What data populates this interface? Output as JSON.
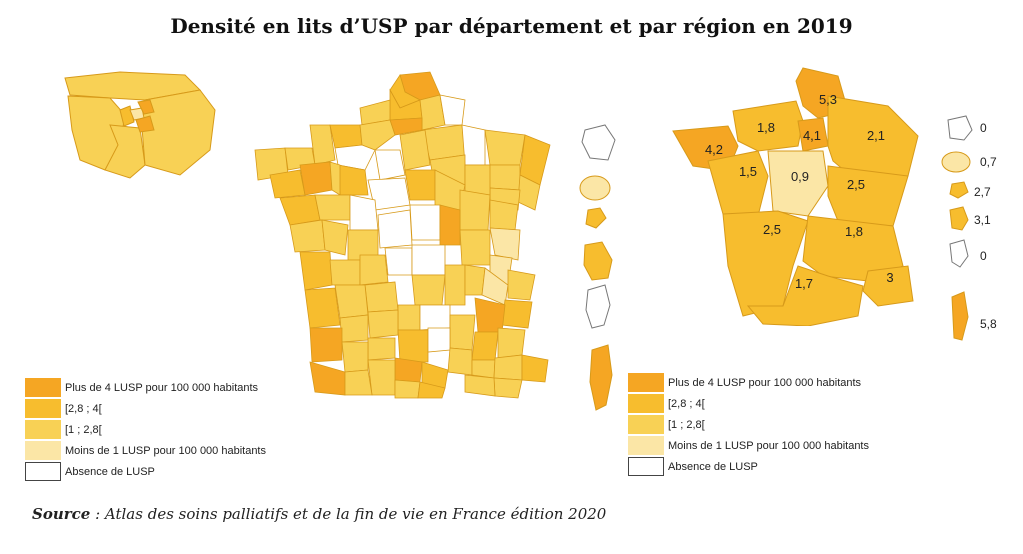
{
  "title": "Densité en lits d’USP par département et par région en 2019",
  "colors": {
    "c4": "#f5a623",
    "c28": "#f7bd2e",
    "c1": "#f8d155",
    "c0": "#fbe6a6",
    "none": "#ffffff",
    "stroke": "#d79a1a"
  },
  "legend_left": [
    {
      "label": "Plus de 4 LUSP pour 100 000 habitants",
      "color": "#f5a623"
    },
    {
      "label": "[2,8 ; 4[",
      "color": "#f7bd2e"
    },
    {
      "label": "[1 ; 2,8[",
      "color": "#f8d155"
    },
    {
      "label": "Moins de 1 LUSP pour 100 000 habitants",
      "color": "#fbe6a6"
    },
    {
      "label": "Absence de LUSP",
      "color": "#ffffff"
    }
  ],
  "legend_right": [
    {
      "label": "Plus de 4 LUSP pour 100 000 habitants",
      "color": "#f5a623"
    },
    {
      "label": "[2,8 ; 4[",
      "color": "#f7bd2e"
    },
    {
      "label": "[1 ; 2,8[",
      "color": "#f8d155"
    },
    {
      "label": "Moins de 1 LUSP pour 100 000 habitants",
      "color": "#fbe6a6"
    },
    {
      "label": "Absence de LUSP",
      "color": "#ffffff"
    }
  ],
  "regions": [
    {
      "name": "Hauts-de-France",
      "value": "5,3"
    },
    {
      "name": "Normandie",
      "value": "1,8"
    },
    {
      "name": "Île-de-France",
      "value": "4,1"
    },
    {
      "name": "Grand Est",
      "value": "2,1"
    },
    {
      "name": "Bretagne",
      "value": "4,2"
    },
    {
      "name": "Pays de la Loire",
      "value": "1,5"
    },
    {
      "name": "Centre-Val de Loire",
      "value": "0,9"
    },
    {
      "name": "Bourgogne-Franche-Comté",
      "value": "2,5"
    },
    {
      "name": "Nouvelle-Aquitaine",
      "value": "2,5"
    },
    {
      "name": "Auvergne-Rhône-Alpes",
      "value": "1,8"
    },
    {
      "name": "Occitanie",
      "value": "1,7"
    },
    {
      "name": "Provence-Alpes-Côte d'Azur",
      "value": "3"
    }
  ],
  "overseas": [
    {
      "name": "Guadeloupe",
      "value": "0"
    },
    {
      "name": "Martinique",
      "value": "0,7"
    },
    {
      "name": "Guyane",
      "value": "2,7"
    },
    {
      "name": "La Réunion",
      "value": "3,1"
    },
    {
      "name": "Mayotte",
      "value": "0"
    },
    {
      "name": "Corse",
      "value": "5,8"
    }
  ],
  "source": {
    "bold": "Source",
    "text": " : Atlas des soins palliatifs et de la fin de vie en France édition 2020"
  }
}
